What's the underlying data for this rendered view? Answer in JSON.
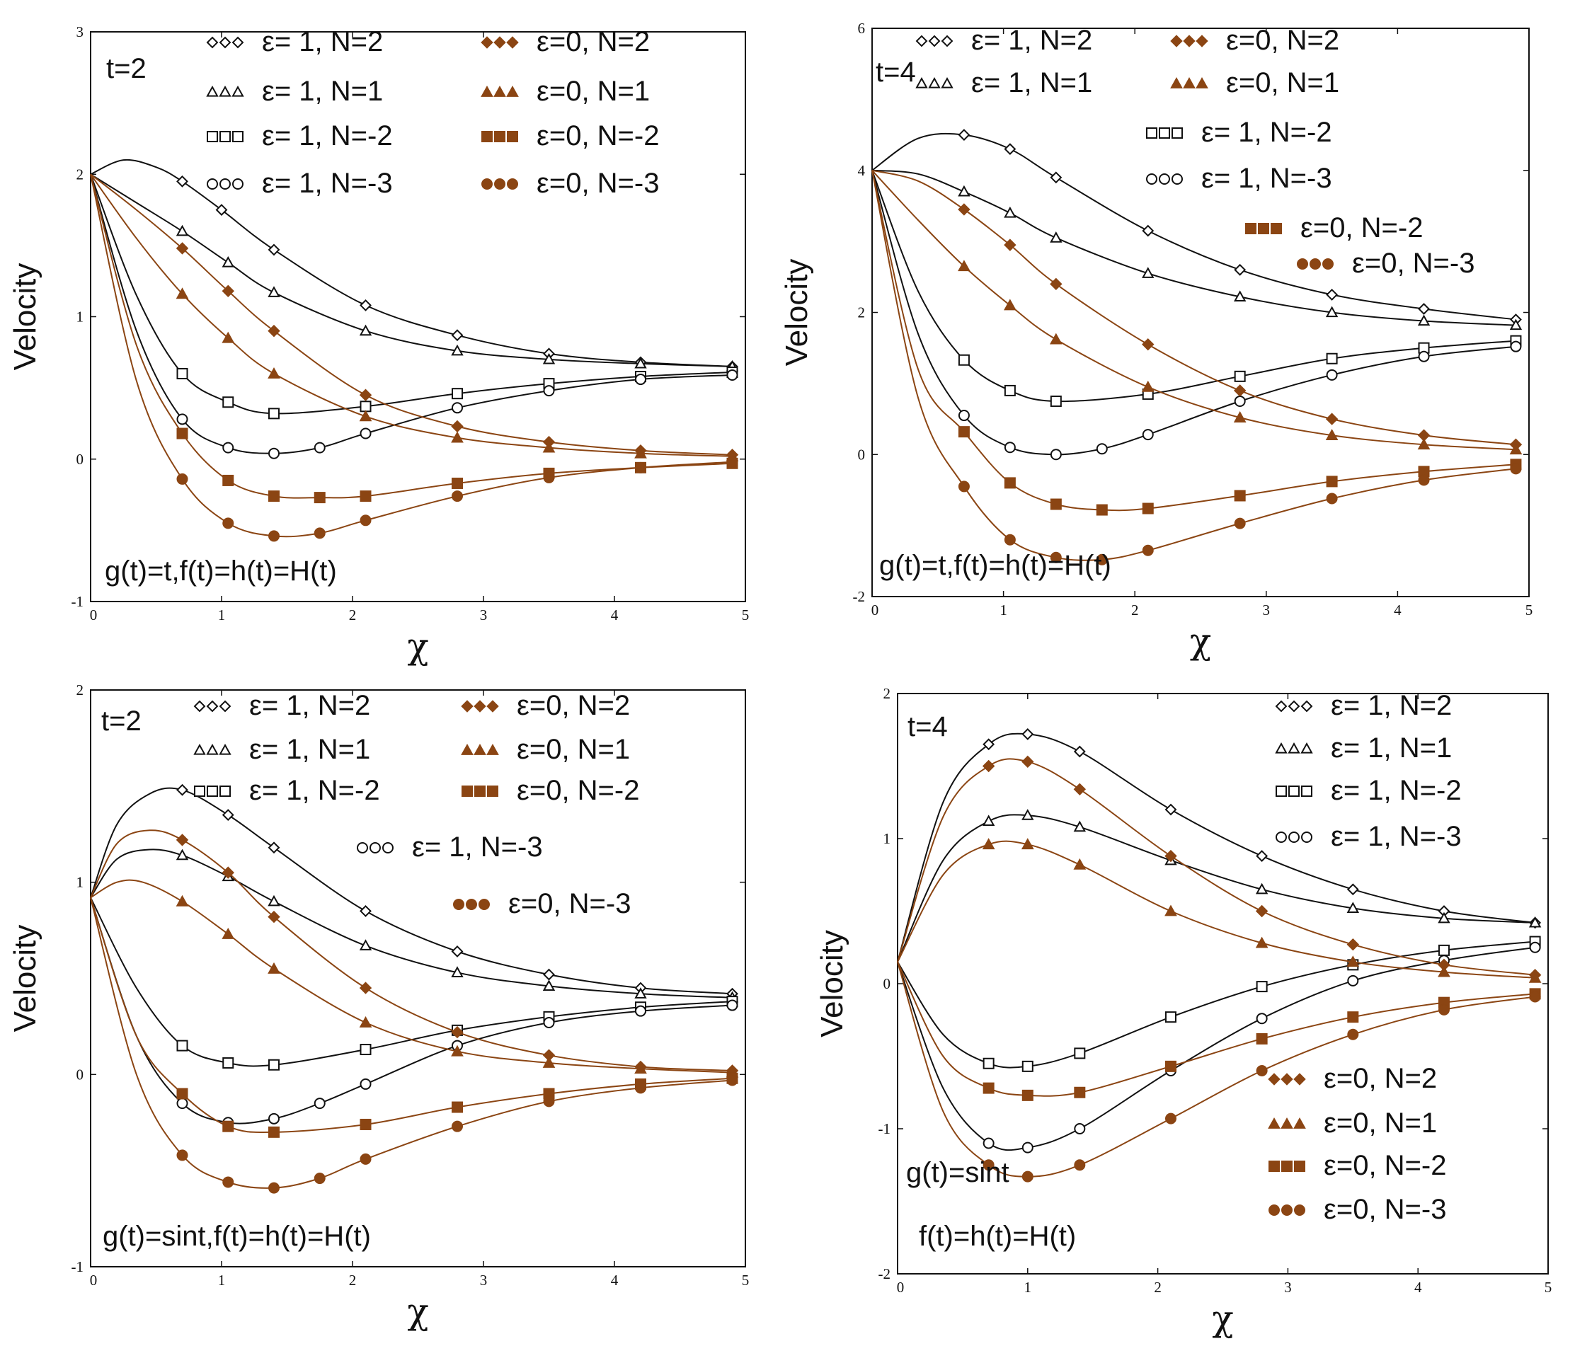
{
  "figure": {
    "background": "#ffffff"
  },
  "colors": {
    "eps1": "#111111",
    "eps0": "#8B4513"
  },
  "chart_data": [
    {
      "type": "line",
      "panel": "top-left",
      "time_label": "t=2",
      "function_label": "g(t)=t,f(t)=h(t)=H(t)",
      "xlabel": "χ",
      "ylabel": "Velocity",
      "xlim": [
        0,
        5
      ],
      "ylim": [
        -1,
        3
      ],
      "xticks": [
        "0",
        "1",
        "2",
        "3",
        "4",
        "5"
      ],
      "yticks": [
        "-1",
        "0",
        "1",
        "2",
        "3"
      ],
      "legend_layout": "two-columns",
      "series": [
        {
          "name": "ε= 1, N=2",
          "marker": "diamond-open",
          "group": "eps1",
          "x": [
            0,
            0.25,
            0.5,
            0.7,
            1.0,
            1.4,
            2.1,
            2.8,
            3.5,
            4.2,
            4.9
          ],
          "y": [
            2.0,
            2.1,
            2.05,
            1.95,
            1.75,
            1.47,
            1.08,
            0.87,
            0.74,
            0.68,
            0.65
          ]
        },
        {
          "name": "ε= 1, N=1",
          "marker": "triangle-open",
          "group": "eps1",
          "x": [
            0,
            0.35,
            0.7,
            1.05,
            1.4,
            2.1,
            2.8,
            3.5,
            4.2,
            4.9
          ],
          "y": [
            2.0,
            1.8,
            1.6,
            1.38,
            1.17,
            0.9,
            0.76,
            0.7,
            0.67,
            0.65
          ]
        },
        {
          "name": "ε= 1, N=-2",
          "marker": "square-open",
          "group": "eps1",
          "x": [
            0,
            0.35,
            0.7,
            1.05,
            1.4,
            2.1,
            2.8,
            3.5,
            4.2,
            4.9
          ],
          "y": [
            2.0,
            1.15,
            0.6,
            0.4,
            0.32,
            0.37,
            0.46,
            0.53,
            0.58,
            0.61
          ]
        },
        {
          "name": "ε= 1, N=-3",
          "marker": "circle-open",
          "group": "eps1",
          "x": [
            0,
            0.35,
            0.7,
            1.05,
            1.4,
            1.75,
            2.1,
            2.8,
            3.5,
            4.2,
            4.9
          ],
          "y": [
            2.0,
            0.9,
            0.28,
            0.08,
            0.04,
            0.08,
            0.18,
            0.36,
            0.48,
            0.56,
            0.59
          ]
        },
        {
          "name": "ε=0, N=2",
          "marker": "diamond-filled",
          "group": "eps0",
          "x": [
            0,
            0.35,
            0.7,
            1.05,
            1.4,
            2.1,
            2.8,
            3.5,
            4.2,
            4.9
          ],
          "y": [
            2.0,
            1.75,
            1.48,
            1.18,
            0.9,
            0.45,
            0.23,
            0.12,
            0.06,
            0.03
          ]
        },
        {
          "name": "ε=0, N=1",
          "marker": "triangle-filled",
          "group": "eps0",
          "x": [
            0,
            0.35,
            0.7,
            1.05,
            1.4,
            2.1,
            2.8,
            3.5,
            4.2,
            4.9
          ],
          "y": [
            2.0,
            1.55,
            1.16,
            0.85,
            0.6,
            0.3,
            0.15,
            0.08,
            0.04,
            0.02
          ]
        },
        {
          "name": "ε=0, N=-2",
          "marker": "square-filled",
          "group": "eps0",
          "x": [
            0,
            0.35,
            0.7,
            1.05,
            1.4,
            1.75,
            2.1,
            2.8,
            3.5,
            4.2,
            4.9
          ],
          "y": [
            2.0,
            0.8,
            0.18,
            -0.15,
            -0.26,
            -0.27,
            -0.26,
            -0.17,
            -0.1,
            -0.06,
            -0.03
          ]
        },
        {
          "name": "ε=0, N=-3",
          "marker": "circle-filled",
          "group": "eps0",
          "x": [
            0,
            0.35,
            0.7,
            1.05,
            1.4,
            1.75,
            2.1,
            2.8,
            3.5,
            4.2,
            4.9
          ],
          "y": [
            2.0,
            0.55,
            -0.14,
            -0.45,
            -0.54,
            -0.52,
            -0.43,
            -0.26,
            -0.13,
            -0.06,
            -0.02
          ]
        }
      ]
    },
    {
      "type": "line",
      "panel": "top-right",
      "time_label": "t=4",
      "function_label": "g(t)=t,f(t)=h(t)=H(t)",
      "xlabel": "χ",
      "ylabel": "Velocity",
      "xlim": [
        0,
        5
      ],
      "ylim": [
        -2,
        6
      ],
      "xticks": [
        "0",
        "1",
        "2",
        "3",
        "4",
        "5"
      ],
      "yticks": [
        "-2",
        "0",
        "2",
        "4",
        "6"
      ],
      "legend_layout": "two-columns-staggered",
      "series": [
        {
          "name": "ε= 1, N=2",
          "marker": "diamond-open",
          "group": "eps1",
          "x": [
            0,
            0.35,
            0.7,
            1.05,
            1.4,
            2.1,
            2.8,
            3.5,
            4.2,
            4.9
          ],
          "y": [
            4.0,
            4.45,
            4.5,
            4.3,
            3.9,
            3.15,
            2.6,
            2.25,
            2.05,
            1.9
          ]
        },
        {
          "name": "ε= 1, N=1",
          "marker": "triangle-open",
          "group": "eps1",
          "x": [
            0,
            0.35,
            0.7,
            1.05,
            1.4,
            2.1,
            2.8,
            3.5,
            4.2,
            4.9
          ],
          "y": [
            4.0,
            3.95,
            3.7,
            3.4,
            3.05,
            2.55,
            2.22,
            2.0,
            1.88,
            1.82
          ]
        },
        {
          "name": "ε= 1, N=-2",
          "marker": "square-open",
          "group": "eps1",
          "x": [
            0,
            0.35,
            0.7,
            1.05,
            1.4,
            2.1,
            2.8,
            3.5,
            4.2,
            4.9
          ],
          "y": [
            4.0,
            2.3,
            1.33,
            0.9,
            0.75,
            0.85,
            1.1,
            1.35,
            1.5,
            1.6
          ]
        },
        {
          "name": "ε= 1, N=-3",
          "marker": "circle-open",
          "group": "eps1",
          "x": [
            0,
            0.35,
            0.7,
            1.05,
            1.4,
            1.75,
            2.1,
            2.8,
            3.5,
            4.2,
            4.9
          ],
          "y": [
            4.0,
            1.7,
            0.55,
            0.1,
            0.0,
            0.08,
            0.28,
            0.75,
            1.12,
            1.38,
            1.52
          ]
        },
        {
          "name": "ε=0, N=2",
          "marker": "diamond-filled",
          "group": "eps0",
          "x": [
            0,
            0.35,
            0.7,
            1.05,
            1.4,
            2.1,
            2.8,
            3.5,
            4.2,
            4.9
          ],
          "y": [
            4.0,
            3.85,
            3.45,
            2.95,
            2.4,
            1.55,
            0.9,
            0.5,
            0.27,
            0.14
          ]
        },
        {
          "name": "ε=0, N=1",
          "marker": "triangle-filled",
          "group": "eps0",
          "x": [
            0,
            0.35,
            0.7,
            1.05,
            1.4,
            2.1,
            2.8,
            3.5,
            4.2,
            4.9
          ],
          "y": [
            4.0,
            3.3,
            2.65,
            2.1,
            1.62,
            0.95,
            0.52,
            0.27,
            0.14,
            0.07
          ]
        },
        {
          "name": "ε=0, N=-2",
          "marker": "square-filled",
          "group": "eps0",
          "x": [
            0,
            0.35,
            0.7,
            1.05,
            1.4,
            1.75,
            2.1,
            2.8,
            3.5,
            4.2,
            4.9
          ],
          "y": [
            4.0,
            1.2,
            0.32,
            -0.4,
            -0.7,
            -0.78,
            -0.76,
            -0.58,
            -0.38,
            -0.24,
            -0.14
          ]
        },
        {
          "name": "ε=0, N=-3",
          "marker": "circle-filled",
          "group": "eps0",
          "x": [
            0,
            0.35,
            0.7,
            1.05,
            1.4,
            1.75,
            2.1,
            2.8,
            3.5,
            4.2,
            4.9
          ],
          "y": [
            4.0,
            0.8,
            -0.45,
            -1.2,
            -1.45,
            -1.48,
            -1.35,
            -0.97,
            -0.62,
            -0.36,
            -0.2
          ]
        }
      ]
    },
    {
      "type": "line",
      "panel": "bottom-left",
      "time_label": "t=2",
      "function_label": "g(t)=sint,f(t)=h(t)=H(t)",
      "xlabel": "χ",
      "ylabel": "Velocity",
      "xlim": [
        0,
        5
      ],
      "ylim": [
        -1,
        2
      ],
      "xticks": [
        "0",
        "1",
        "2",
        "3",
        "4",
        "5"
      ],
      "yticks": [
        "-1",
        "0",
        "1",
        "2"
      ],
      "legend_layout": "two-columns-staggered",
      "series": [
        {
          "name": "ε= 1, N=2",
          "marker": "diamond-open",
          "group": "eps1",
          "x": [
            0,
            0.2,
            0.45,
            0.7,
            1.05,
            1.4,
            2.1,
            2.8,
            3.5,
            4.2,
            4.9
          ],
          "y": [
            0.92,
            1.3,
            1.46,
            1.48,
            1.35,
            1.18,
            0.85,
            0.64,
            0.52,
            0.45,
            0.42
          ]
        },
        {
          "name": "ε= 1, N=1",
          "marker": "triangle-open",
          "group": "eps1",
          "x": [
            0,
            0.2,
            0.45,
            0.7,
            1.05,
            1.4,
            2.1,
            2.8,
            3.5,
            4.2,
            4.9
          ],
          "y": [
            0.92,
            1.12,
            1.17,
            1.14,
            1.03,
            0.9,
            0.67,
            0.53,
            0.46,
            0.42,
            0.4
          ]
        },
        {
          "name": "ε= 1, N=-2",
          "marker": "square-open",
          "group": "eps1",
          "x": [
            0,
            0.35,
            0.7,
            1.05,
            1.4,
            2.1,
            2.8,
            3.5,
            4.2,
            4.9
          ],
          "y": [
            0.92,
            0.45,
            0.15,
            0.06,
            0.05,
            0.13,
            0.23,
            0.3,
            0.35,
            0.38
          ]
        },
        {
          "name": "ε= 1, N=-3",
          "marker": "circle-open",
          "group": "eps1",
          "x": [
            0,
            0.35,
            0.7,
            1.05,
            1.4,
            1.75,
            2.1,
            2.8,
            3.5,
            4.2,
            4.9
          ],
          "y": [
            0.92,
            0.2,
            -0.15,
            -0.25,
            -0.23,
            -0.15,
            -0.05,
            0.15,
            0.27,
            0.33,
            0.36
          ]
        },
        {
          "name": "ε=0, N=2",
          "marker": "diamond-filled",
          "group": "eps0",
          "x": [
            0,
            0.2,
            0.45,
            0.7,
            1.05,
            1.4,
            2.1,
            2.8,
            3.5,
            4.2,
            4.9
          ],
          "y": [
            0.92,
            1.2,
            1.27,
            1.22,
            1.05,
            0.82,
            0.45,
            0.22,
            0.1,
            0.04,
            0.02
          ]
        },
        {
          "name": "ε=0, N=1",
          "marker": "triangle-filled",
          "group": "eps0",
          "x": [
            0,
            0.2,
            0.4,
            0.7,
            1.05,
            1.4,
            2.1,
            2.8,
            3.5,
            4.2,
            4.9
          ],
          "y": [
            0.92,
            1.0,
            1.0,
            0.9,
            0.73,
            0.55,
            0.27,
            0.12,
            0.06,
            0.03,
            0.01
          ]
        },
        {
          "name": "ε=0, N=-2",
          "marker": "square-filled",
          "group": "eps0",
          "x": [
            0,
            0.35,
            0.7,
            1.05,
            1.4,
            2.1,
            2.8,
            3.5,
            4.2,
            4.9
          ],
          "y": [
            0.92,
            0.2,
            -0.1,
            -0.27,
            -0.3,
            -0.26,
            -0.17,
            -0.1,
            -0.05,
            -0.02
          ]
        },
        {
          "name": "ε=0, N=-3",
          "marker": "circle-filled",
          "group": "eps0",
          "x": [
            0,
            0.35,
            0.7,
            1.05,
            1.4,
            1.75,
            2.1,
            2.8,
            3.5,
            4.2,
            4.9
          ],
          "y": [
            0.92,
            0.0,
            -0.42,
            -0.56,
            -0.59,
            -0.54,
            -0.44,
            -0.27,
            -0.14,
            -0.07,
            -0.03
          ]
        }
      ]
    },
    {
      "type": "line",
      "panel": "bottom-right",
      "time_label": "t=4",
      "function_label_lines": [
        "g(t)=sint",
        "f(t)=h(t)=H(t)"
      ],
      "xlabel": "χ",
      "ylabel": "Velocity",
      "xlim": [
        0,
        5
      ],
      "ylim": [
        -2,
        2
      ],
      "xticks": [
        "0",
        "1",
        "2",
        "3",
        "4",
        "5"
      ],
      "yticks": [
        "-2",
        "-1",
        "0",
        "1",
        "2"
      ],
      "legend_layout": "split-top-bottom",
      "series": [
        {
          "name": "ε= 1, N=2",
          "marker": "diamond-open",
          "group": "eps1",
          "x": [
            0,
            0.35,
            0.7,
            1.0,
            1.4,
            2.1,
            2.8,
            3.5,
            4.2,
            4.9
          ],
          "y": [
            0.15,
            1.25,
            1.65,
            1.72,
            1.6,
            1.2,
            0.88,
            0.65,
            0.5,
            0.42
          ]
        },
        {
          "name": "ε= 1, N=1",
          "marker": "triangle-open",
          "group": "eps1",
          "x": [
            0,
            0.35,
            0.7,
            1.0,
            1.4,
            2.1,
            2.8,
            3.5,
            4.2,
            4.9
          ],
          "y": [
            0.15,
            0.85,
            1.12,
            1.16,
            1.08,
            0.85,
            0.65,
            0.52,
            0.45,
            0.42
          ]
        },
        {
          "name": "ε= 1, N=-2",
          "marker": "square-open",
          "group": "eps1",
          "x": [
            0,
            0.35,
            0.7,
            1.0,
            1.4,
            2.1,
            2.8,
            3.5,
            4.2,
            4.9
          ],
          "y": [
            0.15,
            -0.35,
            -0.55,
            -0.57,
            -0.48,
            -0.23,
            -0.02,
            0.13,
            0.23,
            0.29
          ]
        },
        {
          "name": "ε= 1, N=-3",
          "marker": "circle-open",
          "group": "eps1",
          "x": [
            0,
            0.35,
            0.7,
            1.0,
            1.4,
            2.1,
            2.8,
            3.5,
            4.2,
            4.9
          ],
          "y": [
            0.15,
            -0.72,
            -1.1,
            -1.13,
            -1.0,
            -0.6,
            -0.24,
            0.02,
            0.16,
            0.25
          ]
        },
        {
          "name": "ε=0, N=2",
          "marker": "diamond-filled",
          "group": "eps0",
          "x": [
            0,
            0.35,
            0.7,
            1.0,
            1.4,
            2.1,
            2.8,
            3.5,
            4.2,
            4.9
          ],
          "y": [
            0.15,
            1.15,
            1.5,
            1.53,
            1.34,
            0.88,
            0.5,
            0.27,
            0.13,
            0.06
          ]
        },
        {
          "name": "ε=0, N=1",
          "marker": "triangle-filled",
          "group": "eps0",
          "x": [
            0,
            0.35,
            0.7,
            1.0,
            1.4,
            2.1,
            2.8,
            3.5,
            4.2,
            4.9
          ],
          "y": [
            0.15,
            0.75,
            0.96,
            0.96,
            0.82,
            0.5,
            0.28,
            0.15,
            0.08,
            0.04
          ]
        },
        {
          "name": "ε=0, N=-2",
          "marker": "square-filled",
          "group": "eps0",
          "x": [
            0,
            0.35,
            0.7,
            1.0,
            1.4,
            2.1,
            2.8,
            3.5,
            4.2,
            4.9
          ],
          "y": [
            0.15,
            -0.5,
            -0.72,
            -0.77,
            -0.75,
            -0.57,
            -0.38,
            -0.23,
            -0.13,
            -0.07
          ]
        },
        {
          "name": "ε=0, N=-3",
          "marker": "circle-filled",
          "group": "eps0",
          "x": [
            0,
            0.35,
            0.7,
            1.0,
            1.4,
            2.1,
            2.8,
            3.5,
            4.2,
            4.9
          ],
          "y": [
            0.15,
            -0.88,
            -1.25,
            -1.33,
            -1.25,
            -0.93,
            -0.6,
            -0.35,
            -0.18,
            -0.09
          ]
        }
      ]
    }
  ]
}
